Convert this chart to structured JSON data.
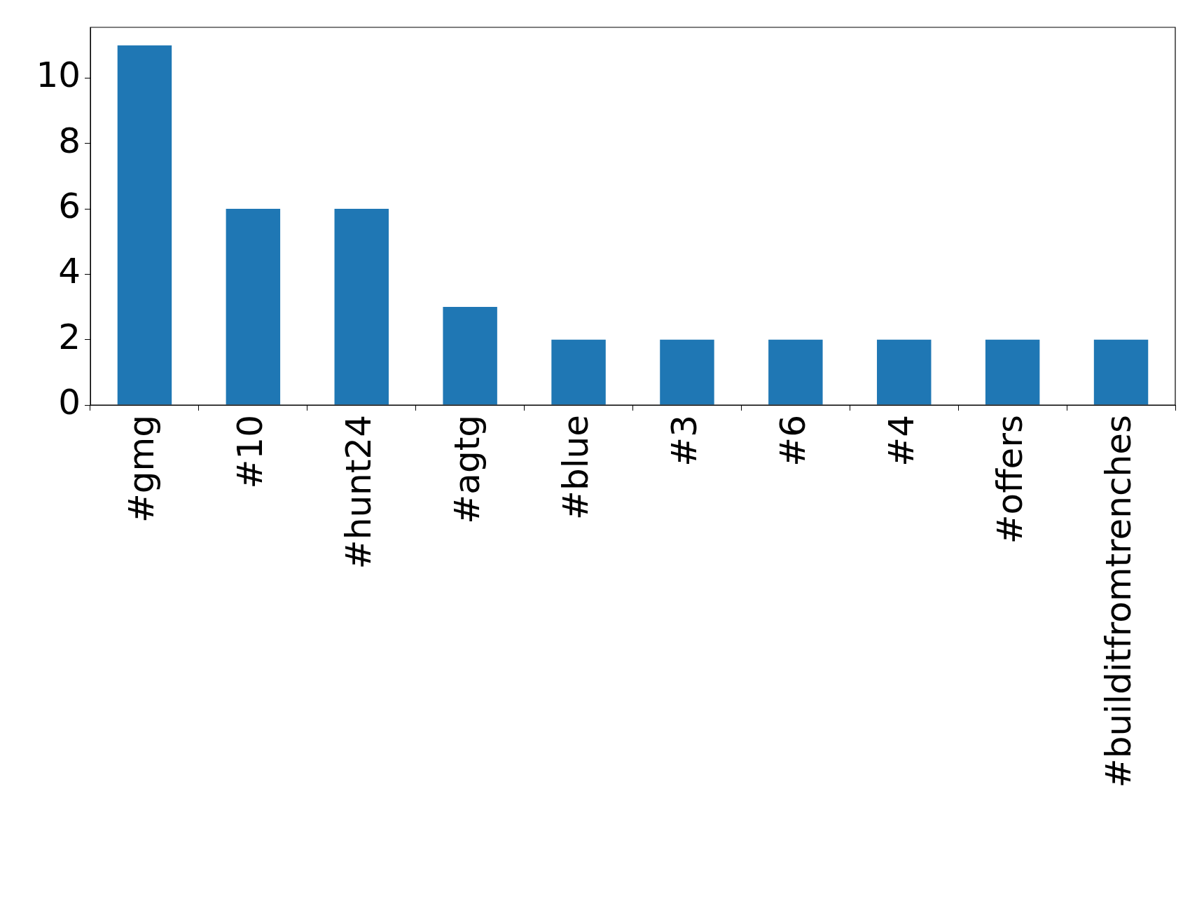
{
  "chart_data": {
    "type": "bar",
    "categories": [
      "#gmg",
      "#10",
      "#hunt24",
      "#agtg",
      "#blue",
      "#3",
      "#6",
      "#4",
      "#offers",
      "#builditfromtrenches"
    ],
    "values": [
      11,
      6,
      6,
      3,
      2,
      2,
      2,
      2,
      2,
      2
    ],
    "color": "#1f77b4",
    "ylim": [
      0,
      11.55
    ],
    "yticks": [
      0,
      2,
      4,
      6,
      8,
      10
    ],
    "grid": false,
    "legend": false
  }
}
